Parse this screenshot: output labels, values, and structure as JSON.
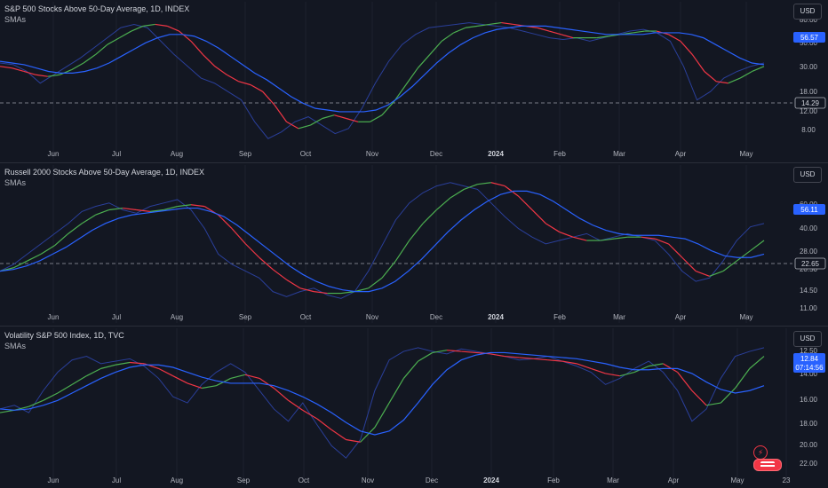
{
  "colors": {
    "background": "#131722",
    "raw": "#2a3f9a",
    "sma_fast_up": "#4caf50",
    "sma_fast_down": "#f23645",
    "sma_slow": "#2962ff",
    "price_label": "#2962ff",
    "grid": "#1e222d"
  },
  "usd_label": "USD",
  "chart_data": [
    {
      "type": "line",
      "title": "S&P 500 Stocks Above 50-Day Average, 1D, INDEX",
      "subtitle": "SMAs",
      "x_labels": [
        "Jun",
        "Jul",
        "Aug",
        "Sep",
        "Oct",
        "Nov",
        "Dec",
        "2024",
        "Feb",
        "Mar",
        "Apr",
        "May"
      ],
      "y_ticks": [
        "80.00",
        "50.00",
        "30.00",
        "18.00",
        "12.00",
        "8.00"
      ],
      "last_value": "56.57",
      "hline_value": "14.29",
      "series": [
        {
          "values": [
            57,
            56,
            52,
            45,
            50,
            55,
            60,
            66,
            72,
            78,
            80,
            78,
            70,
            62,
            55,
            48,
            45,
            40,
            35,
            22,
            12,
            16,
            22,
            25,
            20,
            15,
            18,
            30,
            45,
            58,
            68,
            74,
            78,
            79,
            80,
            81,
            80,
            79,
            78,
            76,
            74,
            72,
            71,
            72,
            70,
            72,
            74,
            76,
            77,
            75,
            70,
            55,
            35,
            40,
            48,
            52,
            55,
            57
          ]
        },
        {
          "values": [
            55,
            54,
            52,
            50,
            49,
            50,
            53,
            57,
            62,
            68,
            72,
            76,
            79,
            80,
            79,
            76,
            70,
            62,
            55,
            50,
            46,
            44,
            40,
            32,
            22,
            18,
            20,
            24,
            26,
            24,
            22,
            22,
            26,
            34,
            44,
            54,
            62,
            70,
            75,
            78,
            79,
            80,
            81,
            80,
            79,
            78,
            76,
            74,
            72,
            72,
            72,
            73,
            74,
            75,
            76,
            76,
            74,
            70,
            62,
            52,
            46,
            45,
            48,
            52,
            55
          ]
        },
        {
          "values": [
            58,
            57,
            56,
            54,
            52,
            51,
            51,
            52,
            54,
            57,
            61,
            65,
            69,
            72,
            74,
            74,
            73,
            70,
            66,
            61,
            56,
            51,
            47,
            42,
            37,
            33,
            30,
            29,
            28,
            28,
            28,
            29,
            32,
            37,
            43,
            50,
            57,
            63,
            68,
            72,
            75,
            77,
            78,
            79,
            79,
            79,
            78,
            77,
            76,
            75,
            74,
            74,
            74,
            74,
            75,
            75,
            75,
            74,
            72,
            68,
            64,
            60,
            57,
            56
          ]
        }
      ]
    },
    {
      "type": "line",
      "title": "Russell 2000 Stocks Above 50-Day Average, 1D, INDEX",
      "subtitle": "SMAs",
      "x_labels": [
        "Jun",
        "Jul",
        "Aug",
        "Sep",
        "Oct",
        "Nov",
        "Dec",
        "2024",
        "Feb",
        "Mar",
        "Apr",
        "May"
      ],
      "y_ticks": [
        "60.00",
        "40.00",
        "28.00",
        "20.50",
        "14.50",
        "11.00"
      ],
      "last_value": "56.11",
      "hline_value": "22.65",
      "series": [
        {
          "values": [
            30,
            34,
            40,
            46,
            52,
            58,
            65,
            68,
            70,
            66,
            64,
            68,
            70,
            72,
            66,
            55,
            40,
            34,
            30,
            26,
            18,
            15,
            18,
            20,
            16,
            14,
            18,
            30,
            45,
            60,
            70,
            76,
            80,
            82,
            80,
            78,
            70,
            62,
            55,
            50,
            46,
            48,
            50,
            52,
            48,
            50,
            52,
            50,
            48,
            40,
            30,
            24,
            26,
            36,
            48,
            56,
            58
          ]
        },
        {
          "values": [
            30,
            32,
            36,
            40,
            45,
            52,
            58,
            63,
            66,
            67,
            66,
            65,
            66,
            68,
            69,
            68,
            63,
            55,
            46,
            38,
            31,
            25,
            20,
            18,
            17,
            17,
            18,
            20,
            26,
            36,
            48,
            58,
            66,
            73,
            78,
            81,
            82,
            80,
            74,
            66,
            58,
            53,
            50,
            48,
            48,
            49,
            50,
            50,
            49,
            46,
            38,
            30,
            27,
            30,
            36,
            42,
            48
          ]
        },
        {
          "values": [
            30,
            31,
            33,
            36,
            40,
            44,
            49,
            54,
            58,
            61,
            63,
            64,
            65,
            66,
            67,
            67,
            65,
            62,
            57,
            51,
            45,
            39,
            33,
            28,
            24,
            21,
            19,
            18,
            18,
            20,
            24,
            30,
            37,
            45,
            53,
            60,
            66,
            71,
            75,
            77,
            77,
            75,
            71,
            66,
            61,
            57,
            54,
            52,
            51,
            51,
            51,
            50,
            49,
            46,
            42,
            39,
            38,
            38,
            40
          ]
        }
      ]
    },
    {
      "type": "line",
      "title": "Volatility S&P 500 Index, 1D, TVC",
      "subtitle": "SMAs",
      "x_labels": [
        "Jun",
        "Jul",
        "Aug",
        "Sep",
        "Oct",
        "Nov",
        "Dec",
        "2024",
        "Feb",
        "Mar",
        "Apr",
        "May",
        "23"
      ],
      "y_ticks": [
        "12.50",
        "14.00",
        "16.00",
        "18.00",
        "20.00",
        "22.00"
      ],
      "last_value": "12.84",
      "countdown": "07:14:56",
      "series": [
        {
          "values": [
            17.5,
            17.2,
            17.8,
            16.0,
            14.5,
            13.5,
            13.2,
            13.8,
            13.6,
            13.4,
            14.0,
            15.0,
            16.5,
            17.0,
            15.5,
            14.5,
            13.8,
            14.5,
            16.0,
            17.5,
            18.5,
            17.0,
            18.8,
            20.5,
            21.5,
            20.0,
            16.0,
            13.5,
            12.8,
            12.5,
            12.8,
            13.0,
            12.6,
            12.8,
            13.0,
            13.2,
            13.5,
            13.4,
            13.2,
            13.6,
            14.0,
            14.5,
            15.5,
            15.0,
            14.2,
            13.6,
            14.5,
            16.0,
            18.5,
            17.5,
            15.0,
            13.2,
            12.8,
            12.5
          ]
        },
        {
          "values": [
            17.8,
            17.6,
            17.3,
            16.8,
            16.2,
            15.5,
            14.8,
            14.2,
            13.9,
            13.7,
            13.8,
            14.2,
            14.8,
            15.4,
            15.8,
            15.6,
            15.0,
            14.7,
            15.0,
            15.8,
            16.8,
            17.6,
            18.3,
            19.2,
            20.0,
            20.2,
            19.0,
            17.0,
            15.0,
            13.6,
            12.9,
            12.7,
            12.8,
            12.9,
            13.0,
            13.2,
            13.3,
            13.4,
            13.5,
            13.6,
            13.8,
            14.2,
            14.6,
            14.8,
            14.5,
            14.0,
            13.8,
            14.5,
            16.0,
            17.2,
            17.0,
            15.8,
            14.2,
            13.2
          ]
        },
        {
          "values": [
            17.5,
            17.6,
            17.5,
            17.2,
            16.8,
            16.2,
            15.6,
            15.0,
            14.5,
            14.1,
            13.9,
            13.9,
            14.1,
            14.5,
            14.9,
            15.2,
            15.4,
            15.4,
            15.4,
            15.6,
            16.0,
            16.5,
            17.1,
            17.8,
            18.6,
            19.3,
            19.6,
            19.3,
            18.4,
            17.0,
            15.5,
            14.3,
            13.5,
            13.1,
            12.9,
            12.9,
            13.0,
            13.1,
            13.2,
            13.3,
            13.4,
            13.6,
            13.8,
            14.1,
            14.3,
            14.3,
            14.2,
            14.2,
            14.6,
            15.3,
            15.9,
            16.2,
            16.0,
            15.6
          ]
        }
      ]
    }
  ]
}
